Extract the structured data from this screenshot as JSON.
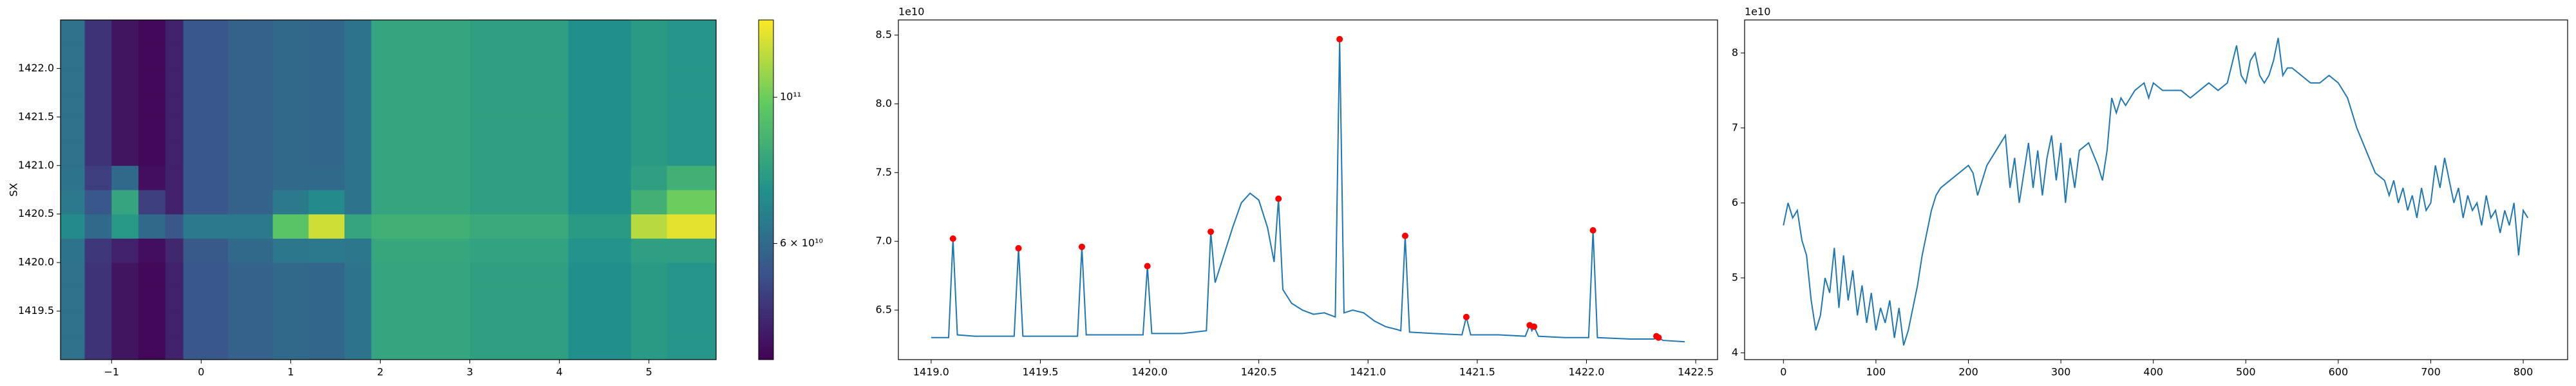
{
  "chart_data": [
    {
      "type": "heatmap",
      "ylabel": "SX",
      "x_edges": [
        -1.57,
        -1.3,
        -1.0,
        -0.7,
        -0.4,
        -0.2,
        0.3,
        0.8,
        1.2,
        1.6,
        1.9,
        3.0,
        4.1,
        4.8,
        5.2,
        5.75
      ],
      "y_edges": [
        1419.0,
        1419.25,
        1419.5,
        1419.75,
        1420.0,
        1420.25,
        1420.5,
        1420.75,
        1421.0,
        1421.25,
        1421.5,
        1421.75,
        1422.0,
        1422.25,
        1422.5
      ],
      "z": [
        [
          62000000000.0,
          48000000000.0,
          43000000000.0,
          41000000000.0,
          45000000000.0,
          55000000000.0,
          58000000000.0,
          60000000000.0,
          59000000000.0,
          63000000000.0,
          80000000000.0,
          78000000000.0,
          72000000000.0,
          76000000000.0,
          74000000000.0
        ],
        [
          62000000000.0,
          48000000000.0,
          43000000000.0,
          41000000000.0,
          45000000000.0,
          55000000000.0,
          58000000000.0,
          60000000000.0,
          59000000000.0,
          63000000000.0,
          80000000000.0,
          78000000000.0,
          72000000000.0,
          76000000000.0,
          74000000000.0
        ],
        [
          62000000000.0,
          48000000000.0,
          43000000000.0,
          41000000000.0,
          45000000000.0,
          55000000000.0,
          58000000000.0,
          60000000000.0,
          59000000000.0,
          63000000000.0,
          80000000000.0,
          78000000000.0,
          72000000000.0,
          76000000000.0,
          74000000000.0
        ],
        [
          62000000000.0,
          48000000000.0,
          43000000000.0,
          41000000000.0,
          45000000000.0,
          55000000000.0,
          58000000000.0,
          60000000000.0,
          59000000000.0,
          63000000000.0,
          80000000000.0,
          78000000000.0,
          72000000000.0,
          76000000000.0,
          74000000000.0
        ],
        [
          63000000000.0,
          49000000000.0,
          45000000000.0,
          42000000000.0,
          46000000000.0,
          56000000000.0,
          60000000000.0,
          64000000000.0,
          65000000000.0,
          64000000000.0,
          81000000000.0,
          79000000000.0,
          73000000000.0,
          78000000000.0,
          78000000000.0
        ],
        [
          70000000000.0,
          60000000000.0,
          75000000000.0,
          60000000000.0,
          55000000000.0,
          65000000000.0,
          65000000000.0,
          95000000000.0,
          120000000000.0,
          80000000000.0,
          85000000000.0,
          82000000000.0,
          76000000000.0,
          115000000000.0,
          125000000000.0
        ],
        [
          65000000000.0,
          55000000000.0,
          80000000000.0,
          50000000000.0,
          45000000000.0,
          55000000000.0,
          58000000000.0,
          65000000000.0,
          70000000000.0,
          63000000000.0,
          80000000000.0,
          78000000000.0,
          72000000000.0,
          85000000000.0,
          100000000000.0
        ],
        [
          63000000000.0,
          50000000000.0,
          60000000000.0,
          42000000000.0,
          45000000000.0,
          55000000000.0,
          58000000000.0,
          60000000000.0,
          60000000000.0,
          63000000000.0,
          80000000000.0,
          78000000000.0,
          72000000000.0,
          78000000000.0,
          85000000000.0
        ],
        [
          62000000000.0,
          48000000000.0,
          43000000000.0,
          41000000000.0,
          45000000000.0,
          55000000000.0,
          58000000000.0,
          60000000000.0,
          59000000000.0,
          63000000000.0,
          80000000000.0,
          78000000000.0,
          72000000000.0,
          76000000000.0,
          74000000000.0
        ],
        [
          62000000000.0,
          48000000000.0,
          43000000000.0,
          41000000000.0,
          45000000000.0,
          55000000000.0,
          58000000000.0,
          60000000000.0,
          59000000000.0,
          63000000000.0,
          80000000000.0,
          78000000000.0,
          72000000000.0,
          76000000000.0,
          74000000000.0
        ],
        [
          62000000000.0,
          48000000000.0,
          43000000000.0,
          41000000000.0,
          45000000000.0,
          55000000000.0,
          58000000000.0,
          60000000000.0,
          59000000000.0,
          63000000000.0,
          80000000000.0,
          78000000000.0,
          72000000000.0,
          76000000000.0,
          74000000000.0
        ],
        [
          62000000000.0,
          48000000000.0,
          43000000000.0,
          41000000000.0,
          45000000000.0,
          55000000000.0,
          58000000000.0,
          60000000000.0,
          59000000000.0,
          63000000000.0,
          80000000000.0,
          78000000000.0,
          72000000000.0,
          76000000000.0,
          74000000000.0
        ],
        [
          62000000000.0,
          48000000000.0,
          43000000000.0,
          41000000000.0,
          45000000000.0,
          55000000000.0,
          58000000000.0,
          60000000000.0,
          59000000000.0,
          63000000000.0,
          80000000000.0,
          78000000000.0,
          72000000000.0,
          76000000000.0,
          74000000000.0
        ],
        [
          62000000000.0,
          48000000000.0,
          43000000000.0,
          41000000000.0,
          45000000000.0,
          55000000000.0,
          58000000000.0,
          60000000000.0,
          59000000000.0,
          63000000000.0,
          80000000000.0,
          78000000000.0,
          72000000000.0,
          76000000000.0,
          74000000000.0
        ]
      ],
      "xlim": [
        -1.57,
        5.75
      ],
      "ylim": [
        1419.0,
        1422.5
      ],
      "xticks": [
        {
          "value": -1,
          "label": "−1"
        },
        0,
        1,
        2,
        3,
        4,
        5
      ],
      "yticks": [
        {
          "value": 1419.5,
          "label": "1419.5"
        },
        {
          "value": 1420,
          "label": "1420.0"
        },
        {
          "value": 1420.5,
          "label": "1420.5"
        },
        {
          "value": 1421,
          "label": "1421.0"
        },
        {
          "value": 1421.5,
          "label": "1421.5"
        },
        {
          "value": 1422,
          "label": "1422.0"
        }
      ],
      "colormap": "viridis",
      "colorbar": {
        "scale": "log",
        "lim": [
          40000000000.0,
          131000000000.0
        ],
        "ticks": [
          {
            "value": 100000000000.0,
            "label": "10¹¹"
          },
          {
            "value": 60000000000.0,
            "label": "6 × 10¹⁰"
          }
        ]
      }
    },
    {
      "type": "line",
      "offset_label": "1e10",
      "xlim": [
        1418.85,
        1422.6
      ],
      "ylim": [
        6.14,
        8.61
      ],
      "xticks": [
        {
          "value": 1419,
          "label": "1419.0"
        },
        {
          "value": 1419.5,
          "label": "1419.5"
        },
        {
          "value": 1420,
          "label": "1420.0"
        },
        {
          "value": 1420.5,
          "label": "1420.5"
        },
        {
          "value": 1421,
          "label": "1421.0"
        },
        {
          "value": 1421.5,
          "label": "1421.5"
        },
        {
          "value": 1422,
          "label": "1422.0"
        },
        {
          "value": 1422.5,
          "label": "1422.5"
        }
      ],
      "yticks": [
        6.5,
        {
          "value": 7,
          "label": "7.0"
        },
        7.5,
        {
          "value": 8,
          "label": "8.0"
        },
        8.5
      ],
      "series": [
        {
          "mode": "line",
          "color": "#1f77b4",
          "x": [
            1419.0,
            1419.08,
            1419.1,
            1419.12,
            1419.2,
            1419.38,
            1419.4,
            1419.42,
            1419.55,
            1419.67,
            1419.69,
            1419.71,
            1419.85,
            1419.97,
            1419.99,
            1420.01,
            1420.15,
            1420.26,
            1420.28,
            1420.3,
            1420.33,
            1420.38,
            1420.42,
            1420.46,
            1420.5,
            1420.54,
            1420.57,
            1420.59,
            1420.61,
            1420.65,
            1420.7,
            1420.75,
            1420.8,
            1420.85,
            1420.87,
            1420.89,
            1420.93,
            1420.98,
            1421.03,
            1421.08,
            1421.13,
            1421.15,
            1421.17,
            1421.19,
            1421.3,
            1421.43,
            1421.45,
            1421.47,
            1421.6,
            1421.72,
            1421.74,
            1421.75,
            1421.76,
            1421.78,
            1421.9,
            1422.01,
            1422.03,
            1422.05,
            1422.2,
            1422.31,
            1422.32,
            1422.33,
            1422.35,
            1422.45
          ],
          "values": [
            6.3,
            6.3,
            7.02,
            6.32,
            6.31,
            6.31,
            6.95,
            6.31,
            6.31,
            6.31,
            6.96,
            6.32,
            6.32,
            6.32,
            6.82,
            6.33,
            6.33,
            6.35,
            7.07,
            6.7,
            6.85,
            7.1,
            7.28,
            7.35,
            7.3,
            7.1,
            6.85,
            7.31,
            6.65,
            6.55,
            6.5,
            6.47,
            6.48,
            6.45,
            8.47,
            6.48,
            6.5,
            6.48,
            6.42,
            6.38,
            6.36,
            6.35,
            7.04,
            6.34,
            6.33,
            6.32,
            6.45,
            6.32,
            6.32,
            6.31,
            6.39,
            6.35,
            6.38,
            6.31,
            6.3,
            6.3,
            7.08,
            6.3,
            6.29,
            6.29,
            6.31,
            6.3,
            6.28,
            6.27
          ]
        },
        {
          "mode": "markers",
          "color": "#ff0000",
          "x": [
            1419.1,
            1419.4,
            1419.69,
            1419.99,
            1420.28,
            1420.59,
            1420.87,
            1421.17,
            1421.45,
            1421.74,
            1421.76,
            1422.03,
            1422.32,
            1422.33
          ],
          "values": [
            7.02,
            6.95,
            6.96,
            6.82,
            7.07,
            7.31,
            8.47,
            7.04,
            6.45,
            6.39,
            6.38,
            7.08,
            6.31,
            6.3
          ]
        }
      ]
    },
    {
      "type": "line",
      "offset_label": "1e10",
      "xlim": [
        -42,
        848
      ],
      "ylim": [
        3.91,
        8.44
      ],
      "xticks": [
        0,
        100,
        200,
        300,
        400,
        500,
        600,
        700,
        800
      ],
      "yticks": [
        4,
        5,
        6,
        7,
        8
      ],
      "series": [
        {
          "mode": "line",
          "color": "#1f77b4",
          "x": [
            0,
            5,
            10,
            15,
            20,
            25,
            30,
            35,
            40,
            45,
            50,
            55,
            60,
            65,
            70,
            75,
            80,
            85,
            90,
            95,
            100,
            105,
            110,
            115,
            120,
            125,
            130,
            135,
            140,
            145,
            150,
            155,
            160,
            165,
            170,
            180,
            190,
            200,
            205,
            210,
            215,
            220,
            230,
            240,
            245,
            250,
            255,
            260,
            265,
            270,
            275,
            280,
            285,
            290,
            295,
            300,
            305,
            310,
            315,
            320,
            330,
            340,
            345,
            350,
            355,
            360,
            365,
            370,
            375,
            380,
            390,
            395,
            400,
            410,
            420,
            430,
            440,
            450,
            460,
            470,
            480,
            490,
            495,
            500,
            505,
            510,
            515,
            520,
            525,
            530,
            535,
            540,
            545,
            550,
            560,
            570,
            580,
            590,
            600,
            610,
            620,
            630,
            640,
            650,
            655,
            660,
            665,
            670,
            675,
            680,
            685,
            690,
            695,
            700,
            705,
            710,
            715,
            720,
            725,
            730,
            735,
            740,
            745,
            750,
            755,
            760,
            765,
            770,
            775,
            780,
            785,
            790,
            795,
            800,
            805
          ],
          "values": [
            5.7,
            6.0,
            5.8,
            5.9,
            5.5,
            5.3,
            4.7,
            4.3,
            4.5,
            5.0,
            4.8,
            5.4,
            4.6,
            5.3,
            4.7,
            5.1,
            4.5,
            4.9,
            4.4,
            4.8,
            4.3,
            4.6,
            4.4,
            4.7,
            4.2,
            4.6,
            4.1,
            4.3,
            4.6,
            4.9,
            5.3,
            5.6,
            5.9,
            6.1,
            6.2,
            6.3,
            6.4,
            6.5,
            6.4,
            6.1,
            6.3,
            6.5,
            6.7,
            6.9,
            6.2,
            6.6,
            6.0,
            6.4,
            6.8,
            6.2,
            6.7,
            6.1,
            6.6,
            6.9,
            6.3,
            6.8,
            6.0,
            6.6,
            6.2,
            6.7,
            6.8,
            6.5,
            6.3,
            6.7,
            7.4,
            7.2,
            7.4,
            7.3,
            7.4,
            7.5,
            7.6,
            7.4,
            7.6,
            7.5,
            7.5,
            7.5,
            7.4,
            7.5,
            7.6,
            7.5,
            7.6,
            8.1,
            7.7,
            7.6,
            7.9,
            8.0,
            7.7,
            7.6,
            7.7,
            7.9,
            8.2,
            7.7,
            7.8,
            7.8,
            7.7,
            7.6,
            7.6,
            7.7,
            7.6,
            7.4,
            7.0,
            6.7,
            6.4,
            6.3,
            6.1,
            6.3,
            6.0,
            6.2,
            5.9,
            6.1,
            5.8,
            6.2,
            5.9,
            6.0,
            6.5,
            6.2,
            6.6,
            6.3,
            6.0,
            6.2,
            5.8,
            6.1,
            5.9,
            6.0,
            5.7,
            6.1,
            5.8,
            5.9,
            5.6,
            5.9,
            5.7,
            6.0,
            5.3,
            5.9,
            5.8
          ]
        }
      ]
    }
  ]
}
